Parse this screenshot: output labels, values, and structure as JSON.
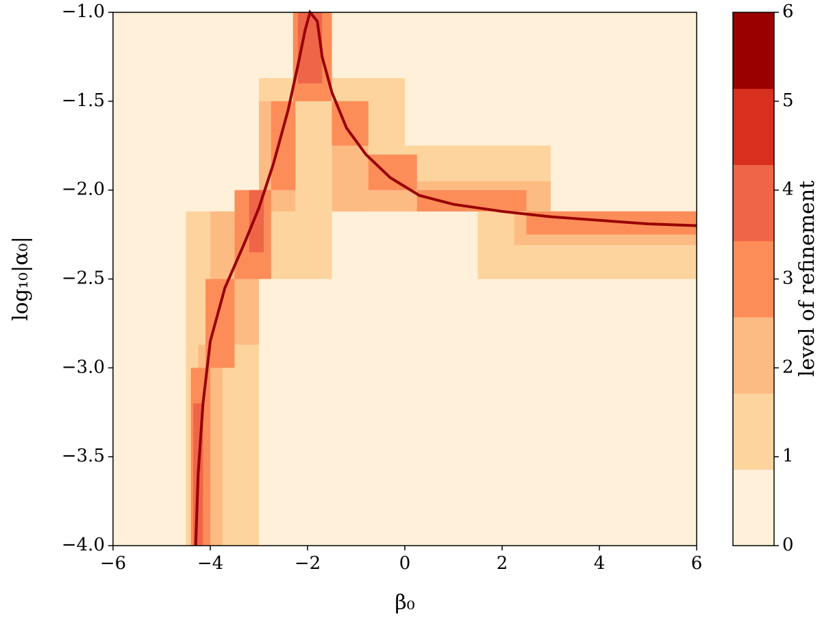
{
  "chart_data": {
    "type": "heatmap",
    "x_label": "β₀",
    "y_label": "log₁₀|α₀|",
    "xlim": [
      -6,
      6
    ],
    "ylim": [
      -4,
      -1
    ],
    "xticks": [
      {
        "value": -6,
        "label": "−6"
      },
      {
        "value": -4,
        "label": "−4"
      },
      {
        "value": -2,
        "label": "−2"
      },
      0,
      2,
      4,
      6
    ],
    "yticks": [
      {
        "value": -4,
        "label": "−4.0"
      },
      {
        "value": -3.5,
        "label": "−3.5"
      },
      {
        "value": -3,
        "label": "−3.0"
      },
      {
        "value": -2.5,
        "label": "−2.5"
      },
      {
        "value": -2,
        "label": "−2.0"
      },
      {
        "value": -1.5,
        "label": "−1.5"
      },
      {
        "value": -1,
        "label": "−1.0"
      }
    ],
    "colorbar": {
      "label": "level of refinement",
      "lim": [
        0,
        6
      ],
      "ticks": [
        0,
        1,
        2,
        3,
        4,
        5,
        6
      ],
      "colors": [
        "#fef0d9",
        "#fdd49e",
        "#fdbb84",
        "#fc8d59",
        "#ef6548",
        "#d7301f",
        "#990000"
      ]
    },
    "background_value": 0,
    "regions": [
      {
        "x": [
          -3,
          0
        ],
        "y": [
          -2.12,
          -1.37
        ],
        "value": 1
      },
      {
        "x": [
          0,
          3
        ],
        "y": [
          -2.12,
          -1.75
        ],
        "value": 1
      },
      {
        "x": [
          -4.5,
          -3
        ],
        "y": [
          -4,
          -2.12
        ],
        "value": 1
      },
      {
        "x": [
          -3,
          -1.5
        ],
        "y": [
          -2.5,
          -2.12
        ],
        "value": 1
      },
      {
        "x": [
          1.5,
          6
        ],
        "y": [
          -2.5,
          -2.12
        ],
        "value": 1
      },
      {
        "x": [
          -4,
          -3
        ],
        "y": [
          -2.87,
          -2.12
        ],
        "value": 2
      },
      {
        "x": [
          -4.25,
          -3.75
        ],
        "y": [
          -4,
          -2.87
        ],
        "value": 2
      },
      {
        "x": [
          -3,
          -2.25
        ],
        "y": [
          -2.12,
          -1.5
        ],
        "value": 2
      },
      {
        "x": [
          -1.5,
          -0.75
        ],
        "y": [
          -2.12,
          -1.5
        ],
        "value": 2
      },
      {
        "x": [
          -1.5,
          3
        ],
        "y": [
          -2.12,
          -1.95
        ],
        "value": 2
      },
      {
        "x": [
          2.25,
          6
        ],
        "y": [
          -2.31,
          -2.12
        ],
        "value": 2
      },
      {
        "x": [
          -4.4,
          -4.0
        ],
        "y": [
          -4,
          -3.0
        ],
        "value": 3
      },
      {
        "x": [
          -4.1,
          -3.5
        ],
        "y": [
          -3.0,
          -2.5
        ],
        "value": 3
      },
      {
        "x": [
          -3.5,
          -2.75
        ],
        "y": [
          -2.5,
          -2.0
        ],
        "value": 3
      },
      {
        "x": [
          -2.75,
          -2.25
        ],
        "y": [
          -2.0,
          -1.5
        ],
        "value": 3
      },
      {
        "x": [
          -2.3,
          -1.5
        ],
        "y": [
          -1.5,
          -1.0
        ],
        "value": 3
      },
      {
        "x": [
          -1.5,
          -0.75
        ],
        "y": [
          -1.75,
          -1.5
        ],
        "value": 3
      },
      {
        "x": [
          -0.75,
          0.25
        ],
        "y": [
          -2.0,
          -1.8
        ],
        "value": 3
      },
      {
        "x": [
          0.25,
          2.5
        ],
        "y": [
          -2.12,
          -2.0
        ],
        "value": 3
      },
      {
        "x": [
          2.5,
          6
        ],
        "y": [
          -2.25,
          -2.12
        ],
        "value": 3
      },
      {
        "x": [
          -4.35,
          -4.15
        ],
        "y": [
          -4,
          -3.2
        ],
        "value": 4
      },
      {
        "x": [
          -2.2,
          -1.7
        ],
        "y": [
          -1.4,
          -1.0
        ],
        "value": 4
      },
      {
        "x": [
          -3.2,
          -2.9
        ],
        "y": [
          -2.35,
          -2.0
        ],
        "value": 4
      }
    ],
    "curve": {
      "value": 6,
      "x": [
        -4.3,
        -4.25,
        -4.15,
        -4.0,
        -3.7,
        -3.3,
        -3.0,
        -2.7,
        -2.4,
        -2.2,
        -2.05,
        -1.95,
        -1.8,
        -1.7,
        -1.5,
        -1.2,
        -0.8,
        -0.3,
        0.3,
        1,
        2,
        3,
        4,
        5,
        6
      ],
      "y": [
        -4.0,
        -3.6,
        -3.2,
        -2.85,
        -2.55,
        -2.3,
        -2.1,
        -1.85,
        -1.55,
        -1.3,
        -1.1,
        -1.0,
        -1.05,
        -1.25,
        -1.45,
        -1.65,
        -1.8,
        -1.93,
        -2.03,
        -2.08,
        -2.12,
        -2.15,
        -2.17,
        -2.19,
        -2.2
      ]
    }
  }
}
